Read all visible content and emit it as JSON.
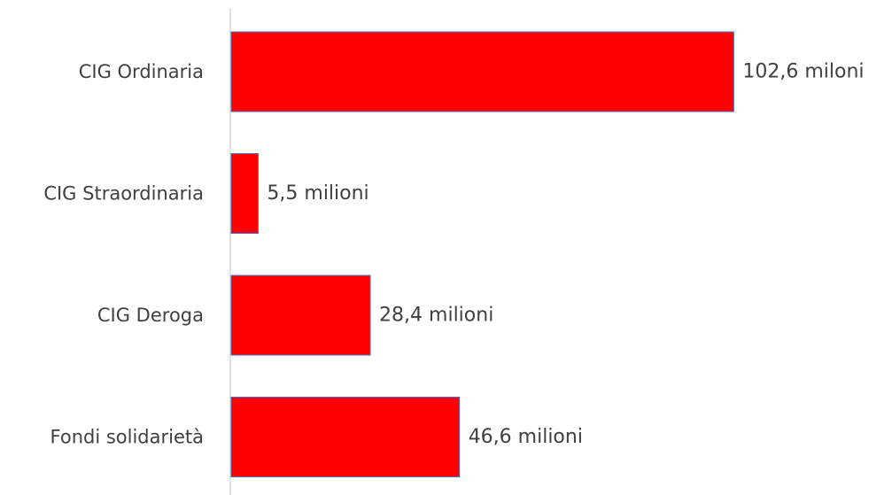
{
  "chart_data": {
    "type": "bar",
    "orientation": "horizontal",
    "categories": [
      "CIG Ordinaria",
      "CIG Straordinaria",
      "CIG Deroga",
      "Fondi solidarietà"
    ],
    "values": [
      102.6,
      5.5,
      28.4,
      46.6
    ],
    "data_labels": [
      "102,6 miloni",
      "5,5 milioni",
      "28,4 milioni",
      "46,6 milioni"
    ],
    "unit": "milioni",
    "title": "",
    "xlabel": "",
    "ylabel": "",
    "grid": false,
    "legend": "none",
    "bar_color": "#ff0000",
    "bar_edge_color": "#4472c4",
    "axis_color": "#d9d9d9",
    "text_color": "#404040"
  }
}
